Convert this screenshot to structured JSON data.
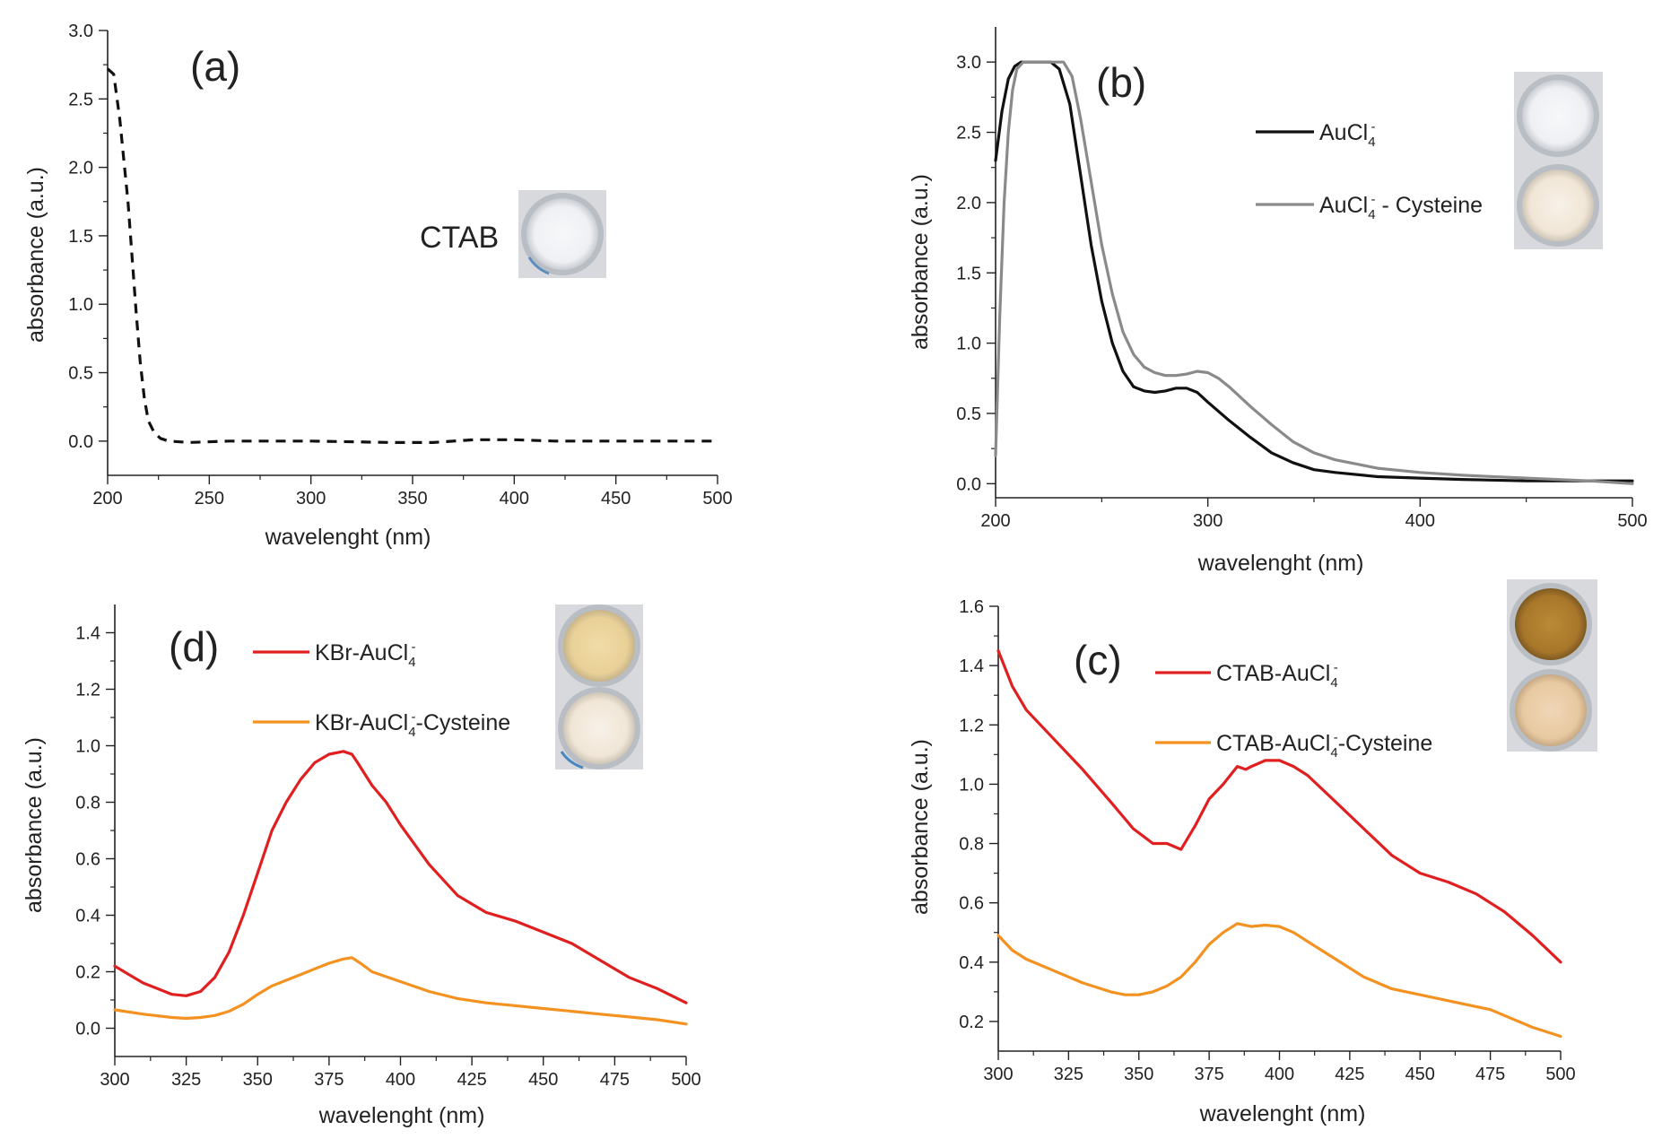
{
  "chart_data": [
    {
      "panel": "(a)",
      "type": "line",
      "xlabel": "wavelenght (nm)",
      "ylabel": "absorbance (a.u.)",
      "xlim": [
        200,
        500
      ],
      "ylim": [
        -0.25,
        3.0
      ],
      "xticks": [
        200,
        250,
        300,
        350,
        400,
        450,
        500
      ],
      "yticks": [
        0.0,
        0.5,
        1.0,
        1.5,
        2.0,
        2.5,
        3.0
      ],
      "xtick_labels": [
        "200",
        "250",
        "300",
        "350",
        "400",
        "450",
        "500"
      ],
      "ytick_labels": [
        "0.0",
        "0.5",
        "1.0",
        "1.5",
        "2.0",
        "2.5",
        "3.0"
      ],
      "inset_label": "CTAB",
      "legend": [],
      "series": [
        {
          "name": "CTAB",
          "color": "#111111",
          "dashed": true,
          "x": [
            200,
            203,
            206,
            208,
            210,
            212,
            214,
            216,
            218,
            220,
            223,
            226,
            230,
            240,
            260,
            300,
            340,
            360,
            380,
            400,
            420,
            450,
            500
          ],
          "y": [
            2.72,
            2.68,
            2.35,
            2.05,
            1.75,
            1.35,
            0.95,
            0.58,
            0.32,
            0.15,
            0.06,
            0.02,
            0.0,
            -0.01,
            0.0,
            0.0,
            -0.01,
            -0.01,
            0.01,
            0.01,
            0.0,
            0.0,
            0.0
          ]
        }
      ]
    },
    {
      "panel": "(b)",
      "type": "line",
      "xlabel": "wavelenght (nm)",
      "ylabel": "absorbance (a.u.)",
      "xlim": [
        200,
        500
      ],
      "ylim": [
        -0.1,
        3.25
      ],
      "xticks": [
        200,
        300,
        400,
        500
      ],
      "yticks": [
        0.0,
        0.5,
        1.0,
        1.5,
        2.0,
        2.5,
        3.0
      ],
      "xtick_labels": [
        "200",
        "300",
        "400",
        "500"
      ],
      "ytick_labels": [
        "0.0",
        "0.5",
        "1.0",
        "1.5",
        "2.0",
        "2.5",
        "3.0"
      ],
      "legend": [
        {
          "base": "AuCl",
          "sub": "4",
          "sup": "-",
          "suffix": "",
          "color": "#111111"
        },
        {
          "base": "AuCl",
          "sub": "4",
          "sup": "-",
          "suffix": " - Cysteine",
          "color": "#8a8a8a"
        }
      ],
      "series": [
        {
          "name": "AuCl4-",
          "color": "#111111",
          "x": [
            200,
            203,
            206,
            209,
            212,
            215,
            220,
            226,
            230,
            235,
            240,
            245,
            250,
            255,
            260,
            265,
            270,
            275,
            280,
            285,
            290,
            295,
            300,
            310,
            320,
            330,
            340,
            350,
            360,
            380,
            400,
            420,
            450,
            480,
            500
          ],
          "y": [
            2.3,
            2.65,
            2.88,
            2.97,
            3.0,
            3.0,
            3.0,
            3.0,
            2.95,
            2.7,
            2.2,
            1.7,
            1.3,
            1.0,
            0.8,
            0.69,
            0.66,
            0.65,
            0.66,
            0.68,
            0.68,
            0.65,
            0.58,
            0.45,
            0.33,
            0.22,
            0.15,
            0.1,
            0.08,
            0.05,
            0.04,
            0.03,
            0.02,
            0.02,
            0.02
          ]
        },
        {
          "name": "AuCl4- - Cysteine",
          "color": "#8a8a8a",
          "x": [
            200,
            202,
            204,
            206,
            208,
            210,
            213,
            216,
            220,
            226,
            232,
            236,
            240,
            245,
            250,
            255,
            260,
            265,
            270,
            275,
            280,
            285,
            290,
            295,
            300,
            305,
            310,
            320,
            330,
            340,
            350,
            360,
            380,
            400,
            420,
            450,
            480,
            500
          ],
          "y": [
            0.2,
            1.2,
            2.0,
            2.5,
            2.8,
            2.95,
            3.0,
            3.0,
            3.0,
            3.0,
            3.0,
            2.9,
            2.6,
            2.15,
            1.7,
            1.35,
            1.08,
            0.92,
            0.83,
            0.79,
            0.77,
            0.77,
            0.78,
            0.8,
            0.79,
            0.75,
            0.69,
            0.55,
            0.42,
            0.3,
            0.22,
            0.17,
            0.11,
            0.08,
            0.06,
            0.04,
            0.02,
            0.0
          ]
        }
      ]
    },
    {
      "panel": "(d)",
      "type": "line",
      "xlabel": "wavelenght (nm)",
      "ylabel": "absorbance (a.u.)",
      "xlim": [
        300,
        500
      ],
      "ylim": [
        -0.1,
        1.5
      ],
      "xticks": [
        300,
        325,
        350,
        375,
        400,
        425,
        450,
        475,
        500
      ],
      "yticks": [
        0.0,
        0.2,
        0.4,
        0.6,
        0.8,
        1.0,
        1.2,
        1.4
      ],
      "xtick_labels": [
        "300",
        "325",
        "350",
        "375",
        "400",
        "425",
        "450",
        "475",
        "500"
      ],
      "ytick_labels": [
        "0.0",
        "0.2",
        "0.4",
        "0.6",
        "0.8",
        "1.0",
        "1.2",
        "1.4"
      ],
      "legend": [
        {
          "base": "KBr-AuCl",
          "sub": "4",
          "sup": "-",
          "suffix": "",
          "color": "#e02020"
        },
        {
          "base": "KBr-AuCl",
          "sub": "4",
          "sup": "-",
          "suffix": "-Cysteine",
          "color": "#f39220"
        }
      ],
      "series": [
        {
          "name": "KBr-AuCl4-",
          "color": "#e02020",
          "x": [
            300,
            305,
            310,
            315,
            320,
            325,
            330,
            335,
            340,
            345,
            350,
            355,
            360,
            365,
            370,
            375,
            380,
            383,
            385,
            390,
            395,
            400,
            410,
            420,
            430,
            440,
            450,
            460,
            470,
            480,
            490,
            500
          ],
          "y": [
            0.22,
            0.19,
            0.16,
            0.14,
            0.12,
            0.115,
            0.13,
            0.18,
            0.27,
            0.4,
            0.55,
            0.7,
            0.8,
            0.88,
            0.94,
            0.97,
            0.98,
            0.97,
            0.94,
            0.86,
            0.8,
            0.72,
            0.58,
            0.47,
            0.41,
            0.38,
            0.34,
            0.3,
            0.24,
            0.18,
            0.14,
            0.09
          ]
        },
        {
          "name": "KBr-AuCl4--Cysteine",
          "color": "#f39220",
          "x": [
            300,
            310,
            320,
            325,
            330,
            335,
            340,
            345,
            350,
            355,
            360,
            365,
            370,
            375,
            380,
            383,
            386,
            390,
            400,
            410,
            420,
            430,
            440,
            450,
            460,
            470,
            480,
            490,
            500
          ],
          "y": [
            0.065,
            0.05,
            0.038,
            0.035,
            0.038,
            0.045,
            0.06,
            0.085,
            0.12,
            0.15,
            0.17,
            0.19,
            0.21,
            0.23,
            0.245,
            0.25,
            0.23,
            0.2,
            0.165,
            0.13,
            0.105,
            0.09,
            0.08,
            0.07,
            0.06,
            0.05,
            0.04,
            0.03,
            0.015
          ]
        }
      ]
    },
    {
      "panel": "(c)",
      "type": "line",
      "xlabel": "wavelenght (nm)",
      "ylabel": "absorbance (a.u.)",
      "xlim": [
        300,
        500
      ],
      "ylim": [
        0.1,
        1.6
      ],
      "xticks": [
        300,
        325,
        350,
        375,
        400,
        425,
        450,
        475,
        500
      ],
      "yticks": [
        0.2,
        0.4,
        0.6,
        0.8,
        1.0,
        1.2,
        1.4,
        1.6
      ],
      "xtick_labels": [
        "300",
        "325",
        "350",
        "375",
        "400",
        "425",
        "450",
        "475",
        "500"
      ],
      "ytick_labels": [
        "0.2",
        "0.4",
        "0.6",
        "0.8",
        "1.0",
        "1.2",
        "1.4",
        "1.6"
      ],
      "legend": [
        {
          "base": "CTAB-AuCl",
          "sub": "4",
          "sup": "-",
          "suffix": "",
          "color": "#e02020"
        },
        {
          "base": "CTAB-AuCl",
          "sub": "4",
          "sup": "-",
          "suffix": "-Cysteine",
          "color": "#f39220"
        }
      ],
      "series": [
        {
          "name": "CTAB-AuCl4-",
          "color": "#e02020",
          "x": [
            300,
            305,
            310,
            320,
            330,
            340,
            348,
            355,
            360,
            365,
            370,
            375,
            380,
            385,
            388,
            390,
            395,
            400,
            405,
            410,
            420,
            430,
            440,
            450,
            460,
            470,
            475,
            480,
            490,
            500
          ],
          "y": [
            1.45,
            1.33,
            1.25,
            1.15,
            1.05,
            0.94,
            0.85,
            0.8,
            0.8,
            0.78,
            0.86,
            0.95,
            1.0,
            1.06,
            1.05,
            1.06,
            1.08,
            1.08,
            1.06,
            1.03,
            0.94,
            0.85,
            0.76,
            0.7,
            0.67,
            0.63,
            0.6,
            0.57,
            0.49,
            0.4
          ]
        },
        {
          "name": "CTAB-AuCl4--Cysteine",
          "color": "#f39220",
          "x": [
            300,
            305,
            310,
            320,
            330,
            340,
            345,
            350,
            355,
            360,
            365,
            370,
            375,
            380,
            385,
            390,
            395,
            400,
            405,
            410,
            420,
            430,
            440,
            450,
            460,
            470,
            475,
            480,
            490,
            500
          ],
          "y": [
            0.49,
            0.44,
            0.41,
            0.37,
            0.33,
            0.3,
            0.29,
            0.29,
            0.3,
            0.32,
            0.35,
            0.4,
            0.46,
            0.5,
            0.53,
            0.52,
            0.525,
            0.52,
            0.5,
            0.47,
            0.41,
            0.35,
            0.31,
            0.29,
            0.27,
            0.25,
            0.24,
            0.22,
            0.18,
            0.15
          ]
        }
      ]
    }
  ]
}
